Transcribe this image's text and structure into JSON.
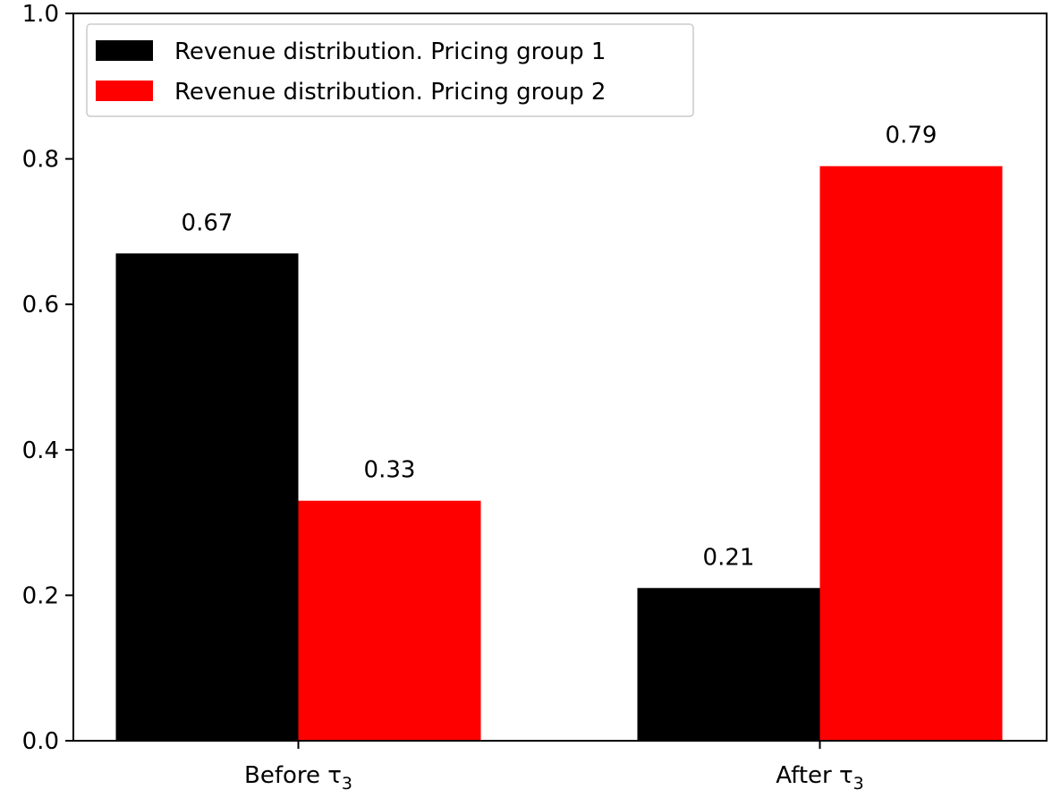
{
  "chart_data": {
    "type": "bar",
    "title": "",
    "xlabel": "",
    "ylabel": "",
    "categories": [
      "Before τ3",
      "After τ3"
    ],
    "category_labels": [
      {
        "main": "Before τ",
        "sub": "3"
      },
      {
        "main": "After τ",
        "sub": "3"
      }
    ],
    "series": [
      {
        "name": "Revenue distribution. Pricing group 1",
        "color": "#000000",
        "values": [
          0.67,
          0.21
        ],
        "labels": [
          "0.67",
          "0.21"
        ]
      },
      {
        "name": "Revenue distribution. Pricing group 2",
        "color": "#ff0000",
        "values": [
          0.33,
          0.79
        ],
        "labels": [
          "0.33",
          "0.79"
        ]
      }
    ],
    "ylim": [
      0,
      1.0
    ],
    "yticks": [
      0.0,
      0.2,
      0.4,
      0.6,
      0.8,
      1.0
    ],
    "ytick_labels": [
      "0.0",
      "0.2",
      "0.4",
      "0.6",
      "0.8",
      "1.0"
    ],
    "grid": false,
    "legend_position": "top-left"
  }
}
